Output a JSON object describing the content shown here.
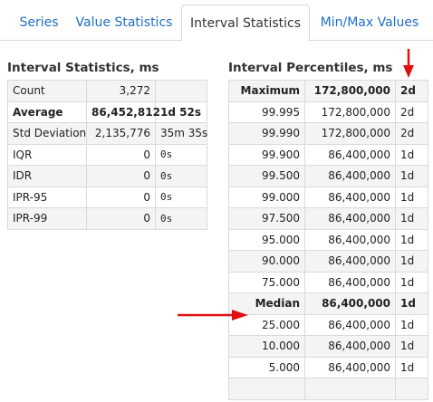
{
  "tabs": [
    {
      "label": "Series",
      "active": false
    },
    {
      "label": "Value Statistics",
      "active": false
    },
    {
      "label": "Interval Statistics",
      "active": true
    },
    {
      "label": "Min/Max Values",
      "active": false
    }
  ],
  "interval_statistics": {
    "title": "Interval Statistics, ms",
    "rows": [
      {
        "label": "Count",
        "value": "3,272",
        "human": ""
      },
      {
        "label": "Average",
        "value": "86,452,812",
        "human": "1d 52s"
      },
      {
        "label": "Std Deviation",
        "value": "2,135,776",
        "human": "35m 35s"
      },
      {
        "label": "IQR",
        "value": "0",
        "human": "0s"
      },
      {
        "label": "IDR",
        "value": "0",
        "human": "0s"
      },
      {
        "label": "IPR-95",
        "value": "0",
        "human": "0s"
      },
      {
        "label": "IPR-99",
        "value": "0",
        "human": "0s"
      }
    ]
  },
  "interval_percentiles": {
    "title": "Interval Percentiles, ms",
    "rows": [
      {
        "label": "Maximum",
        "value": "172,800,000",
        "human": "2d"
      },
      {
        "label": "99.995",
        "value": "172,800,000",
        "human": "2d"
      },
      {
        "label": "99.990",
        "value": "172,800,000",
        "human": "2d"
      },
      {
        "label": "99.900",
        "value": "86,400,000",
        "human": "1d"
      },
      {
        "label": "99.500",
        "value": "86,400,000",
        "human": "1d"
      },
      {
        "label": "99.000",
        "value": "86,400,000",
        "human": "1d"
      },
      {
        "label": "97.500",
        "value": "86,400,000",
        "human": "1d"
      },
      {
        "label": "95.000",
        "value": "86,400,000",
        "human": "1d"
      },
      {
        "label": "90.000",
        "value": "86,400,000",
        "human": "1d"
      },
      {
        "label": "75.000",
        "value": "86,400,000",
        "human": "1d"
      },
      {
        "label": "Median",
        "value": "86,400,000",
        "human": "1d"
      },
      {
        "label": "25.000",
        "value": "86,400,000",
        "human": "1d"
      },
      {
        "label": "10.000",
        "value": "86,400,000",
        "human": "1d"
      },
      {
        "label": "5.000",
        "value": "86,400,000",
        "human": "1d"
      },
      {
        "label": "",
        "value": "",
        "human": ""
      }
    ]
  },
  "colors": {
    "tab_link": "#1f6fc5",
    "annotation_arrow": "#e01010",
    "border": "#dadada",
    "stripe": "#f4f4f4"
  }
}
